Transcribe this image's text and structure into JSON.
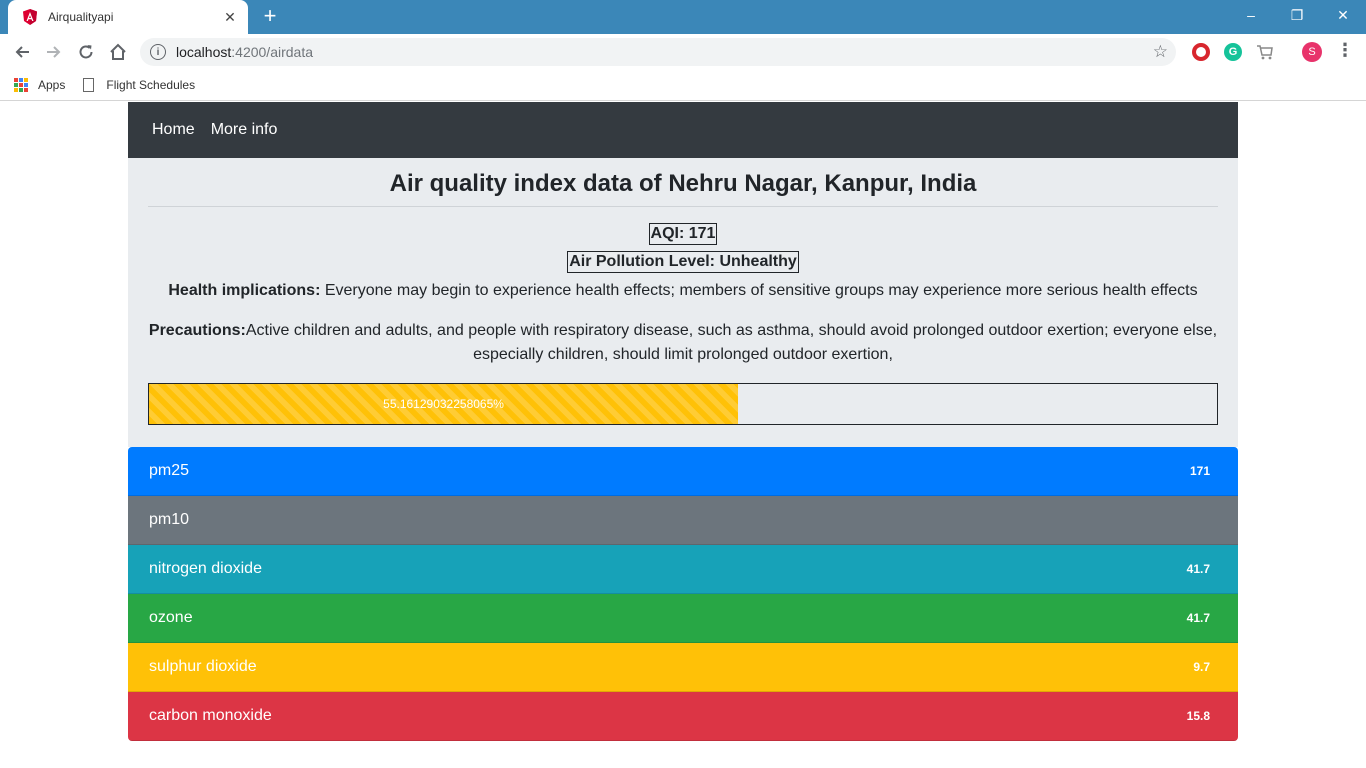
{
  "browser": {
    "tab_title": "Airqualityapi",
    "url_host": "localhost",
    "url_path": ":4200/airdata",
    "bookmarks": [
      {
        "label": "Apps",
        "icon": "apps-grid-icon"
      },
      {
        "label": "Flight Schedules",
        "icon": "document-icon"
      }
    ],
    "profile_initial": "S"
  },
  "nav": {
    "links": [
      "Home",
      "More info"
    ]
  },
  "main": {
    "title": "Air quality index data of Nehru Nagar, Kanpur, India",
    "aqi": "AQI: 171",
    "pollution_level": "Air Pollution Level: Unhealthy",
    "health_label": "Health implications:",
    "health_text": " Everyone may begin to experience health effects; members of sensitive groups may experience more serious health effects",
    "precautions_label": "Precautions:",
    "precautions_text": "Active children and adults, and people with respiratory disease, such as asthma, should avoid prolonged outdoor exertion; everyone else, especially children, should limit prolonged outdoor exertion,",
    "progress": {
      "label": "55.16129032258065%",
      "fraction": 0.5516129032258065,
      "color": "#ffc107"
    }
  },
  "pollutants": [
    {
      "name": "pm25",
      "value": "171",
      "color": "#007bff"
    },
    {
      "name": "pm10",
      "value": "",
      "color": "#6c757d"
    },
    {
      "name": "nitrogen dioxide",
      "value": "41.7",
      "color": "#17a2b8"
    },
    {
      "name": "ozone",
      "value": "41.7",
      "color": "#28a745"
    },
    {
      "name": "sulphur dioxide",
      "value": "9.7",
      "color": "#ffc107"
    },
    {
      "name": "carbon monoxide",
      "value": "15.8",
      "color": "#dc3545"
    }
  ]
}
